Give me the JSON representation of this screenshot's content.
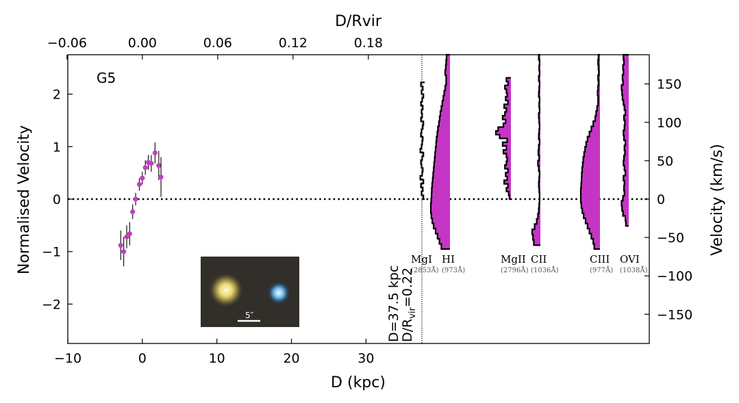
{
  "chart_data": {
    "type": "scatter",
    "panel_label": "G5",
    "xlabel": "D (kpc)",
    "ylabel": "Normalised Velocity",
    "top_xlabel": "D/Rvir",
    "right_ylabel": "Velocity (km/s)",
    "xlim": [
      -10,
      68
    ],
    "ylim": [
      -2.75,
      2.75
    ],
    "right_ylim": [
      -188,
      188
    ],
    "x_ticks": [
      -10,
      0,
      10,
      20,
      30
    ],
    "x_tick_labels": [
      "−10",
      "0",
      "10",
      "20",
      "30"
    ],
    "y_ticks": [
      -2,
      -1,
      0,
      1,
      2
    ],
    "y_tick_labels": [
      "−2",
      "−1",
      "0",
      "1",
      "2"
    ],
    "top_ticks": [
      -0.06,
      0.0,
      0.06,
      0.12,
      0.18
    ],
    "top_tick_labels": [
      "−0.06",
      "0.00",
      "0.06",
      "0.12",
      "0.18"
    ],
    "right_ticks": [
      -150,
      -100,
      -50,
      0,
      50,
      100,
      150
    ],
    "right_tick_labels": [
      "−150",
      "−100",
      "−50",
      "0",
      "50",
      "100",
      "150"
    ],
    "marker_color": "#c03fc0",
    "fill_color": "#c535c5",
    "points": [
      {
        "x": -2.9,
        "y": -0.88,
        "err": 0.28
      },
      {
        "x": -2.5,
        "y": -1.0,
        "err": 0.28
      },
      {
        "x": -2.1,
        "y": -0.72,
        "err": 0.22
      },
      {
        "x": -1.7,
        "y": -0.66,
        "err": 0.22
      },
      {
        "x": -1.3,
        "y": -0.24,
        "err": 0.14
      },
      {
        "x": -0.9,
        "y": 0.0,
        "err": 0.12
      },
      {
        "x": -0.4,
        "y": 0.28,
        "err": 0.12
      },
      {
        "x": 0.0,
        "y": 0.4,
        "err": 0.12
      },
      {
        "x": 0.4,
        "y": 0.6,
        "err": 0.14
      },
      {
        "x": 0.8,
        "y": 0.7,
        "err": 0.14
      },
      {
        "x": 1.2,
        "y": 0.68,
        "err": 0.16
      },
      {
        "x": 1.7,
        "y": 0.88,
        "err": 0.2
      },
      {
        "x": 2.2,
        "y": 0.64,
        "err": 0.28
      },
      {
        "x": 2.5,
        "y": 0.42,
        "err": 0.38
      }
    ],
    "annotation_line1": "D=37.5 kpc",
    "annotation_line2_prefix": "D/R",
    "annotation_line2_sub": "vir",
    "annotation_line2_suffix": "=0.22",
    "image_inset": {
      "scale_label": "5″"
    },
    "absorbers": [
      {
        "ion": "MgI",
        "wave": "(2853Å)",
        "filled": false,
        "vmin": 0,
        "vmax": 152,
        "fractions": [
          0.2,
          0.5,
          0.3,
          0.6,
          0.2,
          0.7,
          0.4,
          0.3,
          0.5,
          0.6,
          0.4,
          0.2,
          0.7,
          0.5,
          0.4,
          0.3,
          0.6,
          0.5,
          0.3,
          0.2,
          0.6,
          0.4,
          0.5,
          0.3,
          0.6,
          0.4,
          0.2,
          0.5,
          0.3,
          0.6
        ]
      },
      {
        "ion": "HI",
        "wave": "(973Å)",
        "filled": true,
        "vmin": -65,
        "vmax": 188,
        "fractions": [
          0.45,
          0.55,
          0.65,
          0.75,
          0.85,
          0.92,
          0.97,
          1.0,
          1.0,
          0.98,
          0.96,
          0.95,
          0.93,
          0.9,
          0.88,
          0.85,
          0.83,
          0.8,
          0.78,
          0.75,
          0.72,
          0.7,
          0.66,
          0.63,
          0.58,
          0.54,
          0.5,
          0.45,
          0.4,
          0.35,
          0.3,
          0.25,
          0.2,
          0.2,
          0.25,
          0.22,
          0.2,
          0.18
        ]
      },
      {
        "ion": "MgII",
        "wave": "(2796Å)",
        "filled": true,
        "vmin": 0,
        "vmax": 158,
        "fractions": [
          0.1,
          0.15,
          0.3,
          0.2,
          0.45,
          0.25,
          0.35,
          0.2,
          0.4,
          0.3,
          0.25,
          0.3,
          0.5,
          0.3,
          0.55,
          0.25,
          0.75,
          1.0,
          0.85,
          0.5,
          0.35,
          0.55,
          0.4,
          0.3,
          0.45,
          0.2,
          0.35,
          0.25,
          0.3,
          0.4,
          0.2,
          0.3
        ]
      },
      {
        "ion": "CII",
        "wave": "(1036Å)",
        "filled": true,
        "vmin": -60,
        "vmax": 188,
        "fractions": [
          0.8,
          0.9,
          1.0,
          0.7,
          0.45,
          0.3,
          0.2,
          0.15,
          0.1,
          0.1,
          0.15,
          0.2,
          0.15,
          0.1,
          0.2,
          0.3,
          0.15,
          0.25,
          0.2,
          0.1,
          0.2,
          0.15,
          0.1,
          0.15,
          0.2,
          0.1,
          0.15,
          0.1,
          0.2,
          0.15,
          0.1,
          0.2,
          0.1,
          0.15,
          0.1,
          0.2
        ]
      },
      {
        "ion": "CIII",
        "wave": "(977Å)",
        "filled": true,
        "vmin": -65,
        "vmax": 188,
        "fractions": [
          0.3,
          0.35,
          0.45,
          0.55,
          0.65,
          0.75,
          0.85,
          0.92,
          0.97,
          1.0,
          1.0,
          1.0,
          0.98,
          0.96,
          0.95,
          0.93,
          0.9,
          0.87,
          0.83,
          0.78,
          0.72,
          0.65,
          0.55,
          0.45,
          0.35,
          0.25,
          0.2,
          0.15,
          0.1,
          0.1,
          0.12,
          0.1,
          0.08,
          0.1,
          0.06,
          0.08,
          0.1,
          0.08
        ]
      },
      {
        "ion": "OVI",
        "wave": "(1038Å)",
        "filled": true,
        "vmin": -35,
        "vmax": 188,
        "fractions": [
          0.3,
          0.35,
          0.6,
          0.7,
          0.75,
          0.6,
          0.45,
          0.5,
          0.45,
          0.55,
          0.35,
          0.45,
          0.55,
          0.5,
          0.4,
          0.45,
          0.35,
          0.5,
          0.55,
          0.45,
          0.4,
          0.5,
          0.35,
          0.45,
          0.55,
          0.65,
          0.7,
          0.75,
          0.6,
          0.65,
          0.55,
          0.6,
          0.5,
          0.55
        ]
      }
    ]
  }
}
